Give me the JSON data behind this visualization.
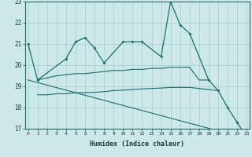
{
  "xlabel": "Humidex (Indice chaleur)",
  "bg_color": "#cce8e8",
  "grid_color": "#aacccc",
  "line_color": "#1a6e6a",
  "ylim": [
    17,
    23
  ],
  "xlim": [
    0,
    23
  ],
  "main_x": [
    0,
    1,
    4,
    5,
    6,
    7,
    8,
    10,
    11,
    12,
    14,
    15,
    16,
    17,
    19,
    20,
    21,
    22,
    23
  ],
  "main_y": [
    21.0,
    19.3,
    20.3,
    21.1,
    21.3,
    20.8,
    20.1,
    21.1,
    21.1,
    21.1,
    20.4,
    23.0,
    21.9,
    21.5,
    19.3,
    18.8,
    18.0,
    17.3,
    16.6
  ],
  "rise_x": [
    1,
    2,
    3,
    4,
    5,
    6,
    7,
    8,
    9,
    10,
    11,
    12,
    13,
    14,
    15,
    16,
    17,
    18,
    19
  ],
  "rise_y": [
    19.3,
    19.4,
    19.5,
    19.55,
    19.6,
    19.6,
    19.65,
    19.7,
    19.75,
    19.75,
    19.8,
    19.8,
    19.85,
    19.85,
    19.9,
    19.9,
    19.9,
    19.3,
    19.3
  ],
  "flat1_x": [
    1,
    2,
    3,
    4,
    5,
    6,
    7,
    8,
    9,
    10,
    11,
    12,
    13,
    14,
    15,
    16,
    17,
    18,
    19,
    20
  ],
  "flat1_y": [
    18.6,
    18.6,
    18.65,
    18.65,
    18.7,
    18.7,
    18.72,
    18.75,
    18.8,
    18.82,
    18.85,
    18.88,
    18.9,
    18.92,
    18.95,
    18.95,
    18.95,
    18.9,
    18.85,
    18.8
  ],
  "diag_x": [
    0,
    1,
    2,
    3,
    4,
    5,
    6,
    7,
    8,
    9,
    10,
    11,
    12,
    13,
    14,
    15,
    16,
    17,
    18,
    19,
    20,
    21,
    22,
    23
  ],
  "diag_y": [
    19.3,
    19.18,
    19.06,
    18.94,
    18.82,
    18.7,
    18.58,
    18.46,
    18.34,
    18.22,
    18.1,
    17.98,
    17.86,
    17.74,
    17.62,
    17.5,
    17.38,
    17.26,
    17.14,
    17.02,
    16.9,
    16.78,
    16.66,
    16.54
  ]
}
